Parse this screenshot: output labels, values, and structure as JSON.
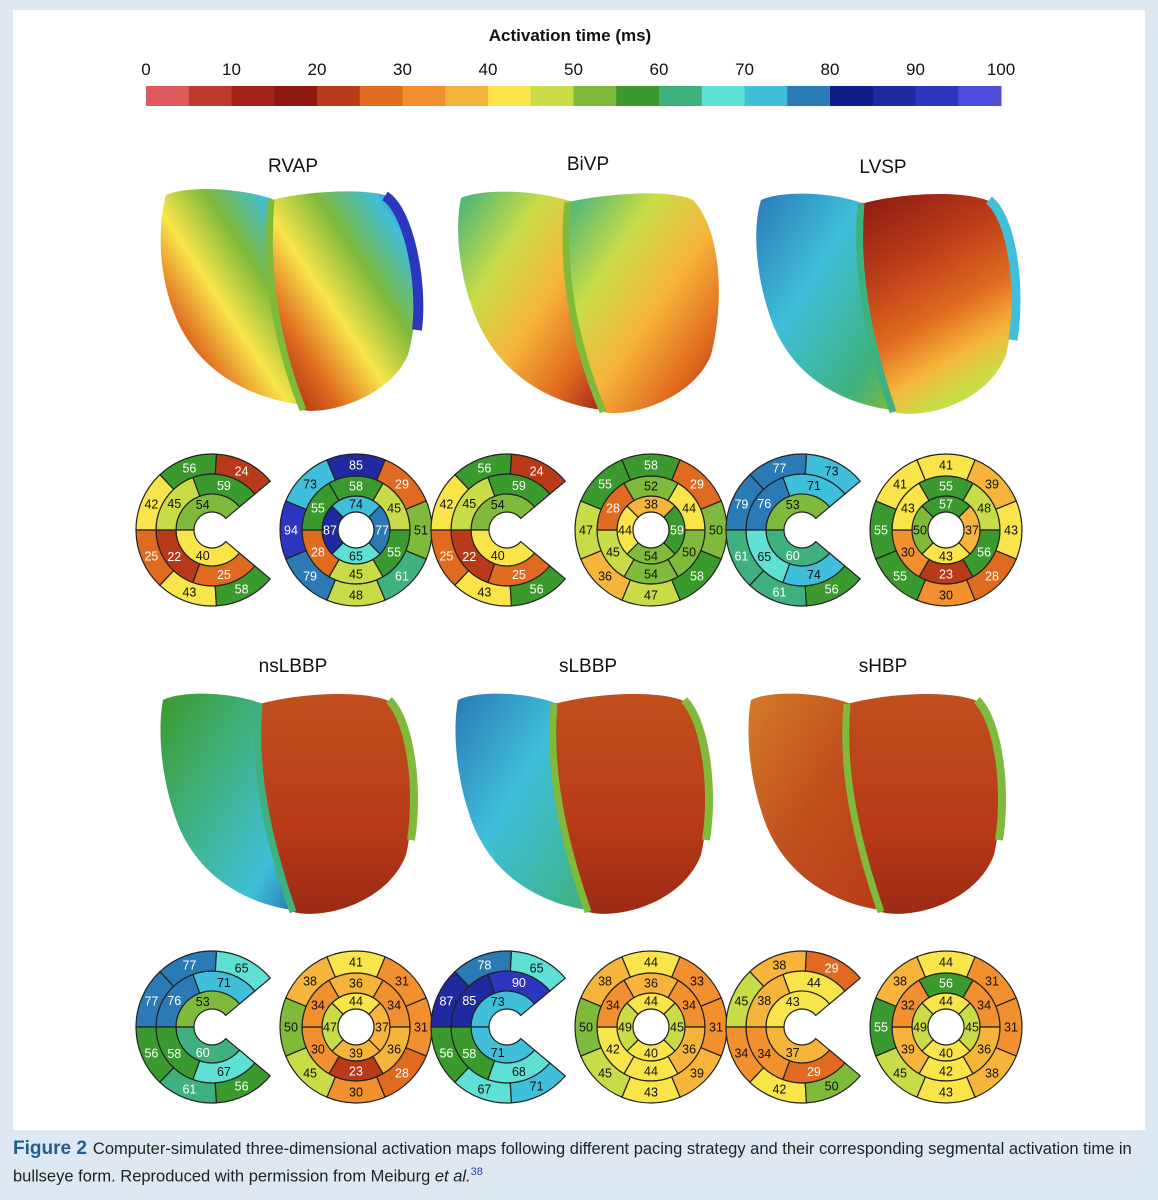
{
  "colorbar": {
    "title": "Activation time (ms)",
    "ticks": [
      "0",
      "10",
      "20",
      "30",
      "40",
      "50",
      "60",
      "70",
      "80",
      "90",
      "100"
    ],
    "colors": [
      "#dd5b5e",
      "#c0392e",
      "#a3231b",
      "#8b1912",
      "#b83a18",
      "#e06a1f",
      "#f28f2e",
      "#f6b53a",
      "#f9e54a",
      "#c9dc47",
      "#7fba3b",
      "#3b9a2d",
      "#3fb17f",
      "#5ee0d4",
      "#3fbfd9",
      "#2a7ab6",
      "#0e1a86",
      "#1f2aa0",
      "#2c36bf",
      "#4b4fdc"
    ]
  },
  "panels": [
    {
      "label": "RVAP",
      "left": [
        54,
        40,
        59,
        45,
        22,
        25,
        24,
        56,
        42,
        25,
        43,
        58
      ],
      "right": [
        77,
        65,
        87,
        74,
        45,
        55,
        45,
        28,
        55,
        58,
        29,
        51,
        61,
        48,
        79,
        94,
        73,
        85
      ]
    },
    {
      "label": "BiVP",
      "left": [
        54,
        40,
        59,
        45,
        22,
        25,
        24,
        56,
        42,
        25,
        43,
        56
      ],
      "right": [
        59,
        54,
        44,
        38,
        44,
        50,
        54,
        45,
        28,
        52,
        29,
        50,
        58,
        47,
        36,
        47,
        55,
        58
      ]
    },
    {
      "label": "LVSP",
      "left": [
        53,
        60,
        71,
        76,
        65,
        74,
        73,
        77,
        79,
        61,
        61,
        56
      ],
      "right": [
        37,
        43,
        50,
        57,
        48,
        56,
        23,
        30,
        43,
        55,
        39,
        43,
        28,
        30,
        55,
        55,
        41,
        41
      ]
    },
    {
      "label": "nsLBBP",
      "left": [
        53,
        60,
        71,
        76,
        58,
        67,
        65,
        77,
        77,
        56,
        61,
        56
      ],
      "right": [
        37,
        39,
        47,
        44,
        34,
        36,
        23,
        30,
        34,
        36,
        31,
        31,
        28,
        30,
        45,
        50,
        38,
        41
      ]
    },
    {
      "label": "sLBBP",
      "left": [
        73,
        71,
        90,
        85,
        58,
        68,
        65,
        78,
        87,
        56,
        67,
        71
      ],
      "right": [
        45,
        40,
        49,
        44,
        34,
        36,
        44,
        42,
        34,
        36,
        33,
        31,
        39,
        43,
        45,
        50,
        38,
        44
      ]
    },
    {
      "label": "sHBP",
      "left": [
        43,
        37,
        44,
        38,
        34,
        29,
        29,
        38,
        45,
        34,
        42,
        50
      ],
      "right": [
        45,
        40,
        49,
        44,
        34,
        36,
        42,
        39,
        32,
        56,
        31,
        31,
        38,
        43,
        45,
        55,
        38,
        44
      ]
    }
  ],
  "caption": {
    "label": "Figure 2",
    "text": "Computer-simulated three-dimensional activation maps following different pacing strategy and their corresponding segmental activation time in bullseye form. Reproduced with permission from Meiburg ",
    "etal": "et al.",
    "ref": "38"
  }
}
